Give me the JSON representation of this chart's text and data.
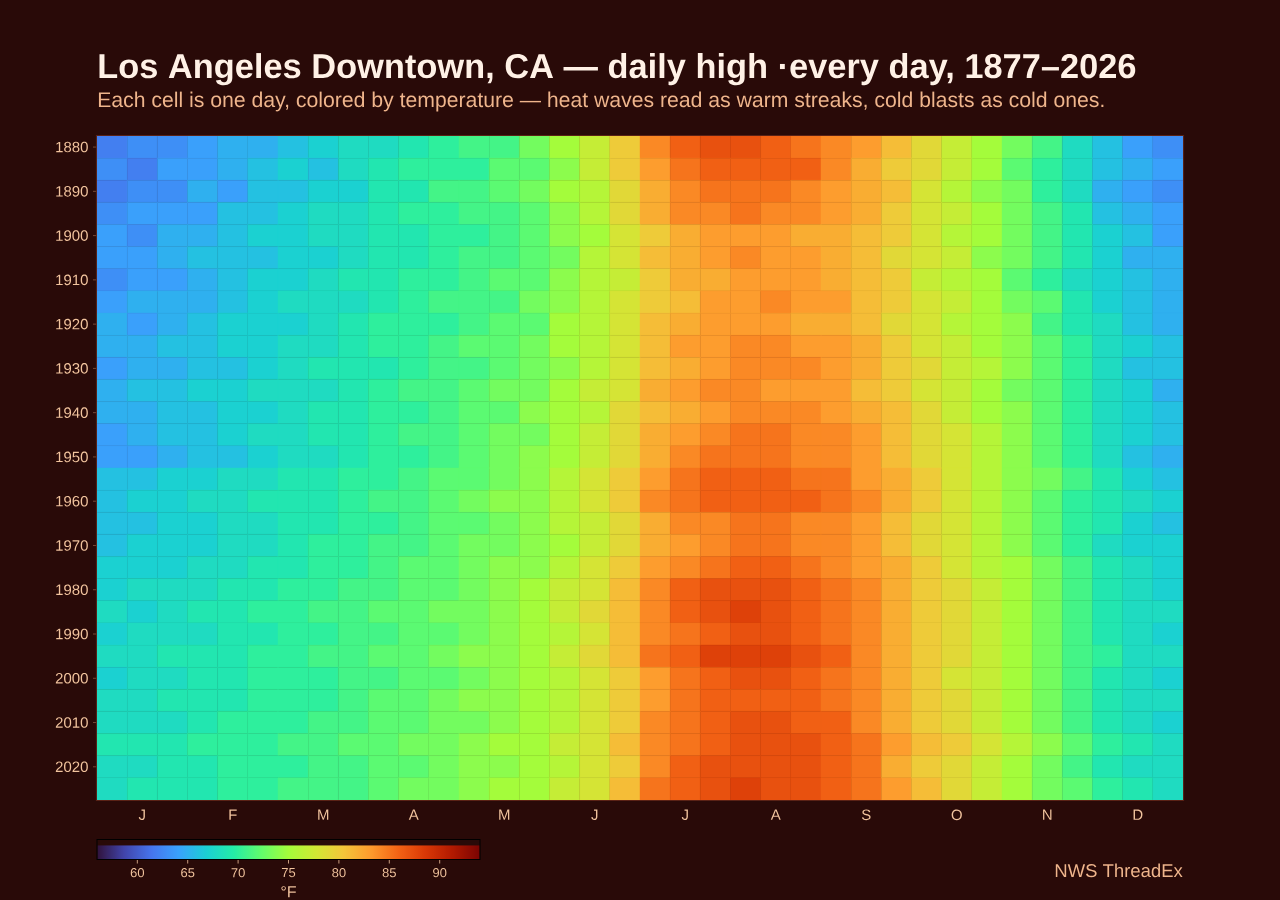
{
  "chart_data": {
    "type": "heatmap",
    "title": "Los Angeles Downtown, CA — daily high ·every day, 1877–2026",
    "subtitle": "Each cell is one day, colored by temperature — heat waves read as warm streaks, cold blasts as cold ones.",
    "annotations": [
      "NWS ThreadEx"
    ],
    "categories": [
      null,
      "J",
      null,
      null,
      "F",
      null,
      null,
      "M",
      null,
      null,
      "A",
      null,
      null,
      "M",
      null,
      null,
      "J",
      null,
      null,
      "J",
      null,
      null,
      "A",
      null,
      null,
      "S",
      null,
      null,
      "O",
      null,
      null,
      "N",
      null,
      null,
      "D",
      null
    ],
    "y_categories": [
      "1880",
      null,
      "1890",
      null,
      "1900",
      null,
      "1910",
      null,
      "1920",
      null,
      "1930",
      null,
      "1940",
      null,
      "1950",
      null,
      "1960",
      null,
      "1970",
      null,
      "1980",
      null,
      "1990",
      null,
      "2000",
      null,
      "2010",
      null,
      "2020",
      null
    ],
    "cells": [
      [
        62,
        63,
        63,
        64,
        65,
        65,
        66,
        67,
        68,
        68,
        69,
        70,
        71,
        71,
        73,
        75,
        77,
        80,
        84,
        86,
        87,
        87,
        86,
        85,
        84,
        83,
        81,
        79,
        77,
        75,
        73,
        71,
        68,
        66,
        64,
        63
      ],
      [
        63,
        62,
        64,
        64,
        65,
        66,
        67,
        66,
        68,
        69,
        70,
        70,
        70,
        72,
        72,
        74,
        77,
        80,
        83,
        85,
        86,
        86,
        86,
        86,
        84,
        82,
        80,
        79,
        77,
        75,
        72,
        70,
        68,
        66,
        65,
        64
      ],
      [
        62,
        63,
        63,
        65,
        64,
        66,
        66,
        67,
        67,
        69,
        69,
        71,
        71,
        72,
        73,
        75,
        76,
        79,
        82,
        84,
        85,
        85,
        85,
        84,
        83,
        82,
        81,
        78,
        76,
        74,
        73,
        70,
        68,
        65,
        64,
        63
      ],
      [
        63,
        64,
        64,
        64,
        66,
        66,
        67,
        68,
        68,
        69,
        70,
        70,
        71,
        71,
        72,
        74,
        76,
        79,
        82,
        84,
        84,
        85,
        84,
        84,
        83,
        82,
        80,
        78,
        77,
        75,
        73,
        71,
        69,
        66,
        65,
        64
      ],
      [
        64,
        63,
        65,
        65,
        66,
        67,
        67,
        68,
        68,
        69,
        69,
        70,
        70,
        71,
        72,
        74,
        75,
        78,
        80,
        82,
        83,
        83,
        83,
        82,
        82,
        81,
        80,
        78,
        76,
        75,
        73,
        71,
        69,
        67,
        66,
        64
      ],
      [
        64,
        64,
        65,
        66,
        66,
        66,
        67,
        67,
        68,
        69,
        69,
        70,
        71,
        71,
        72,
        73,
        76,
        78,
        81,
        82,
        83,
        84,
        83,
        83,
        82,
        81,
        79,
        78,
        77,
        74,
        73,
        71,
        69,
        67,
        65,
        65
      ],
      [
        63,
        64,
        64,
        65,
        66,
        67,
        67,
        68,
        69,
        69,
        70,
        70,
        71,
        72,
        72,
        74,
        76,
        77,
        80,
        82,
        82,
        83,
        83,
        83,
        82,
        81,
        80,
        77,
        76,
        75,
        72,
        70,
        68,
        67,
        66,
        65
      ],
      [
        64,
        65,
        65,
        65,
        66,
        67,
        68,
        68,
        68,
        69,
        70,
        71,
        71,
        71,
        73,
        74,
        76,
        78,
        80,
        81,
        83,
        83,
        84,
        83,
        83,
        81,
        80,
        78,
        77,
        75,
        73,
        72,
        69,
        67,
        66,
        65
      ],
      [
        65,
        64,
        65,
        66,
        67,
        67,
        67,
        68,
        69,
        70,
        70,
        70,
        71,
        72,
        72,
        75,
        76,
        78,
        81,
        82,
        83,
        83,
        83,
        82,
        82,
        81,
        79,
        78,
        76,
        75,
        74,
        71,
        69,
        68,
        66,
        65
      ],
      [
        65,
        65,
        66,
        66,
        67,
        67,
        68,
        68,
        69,
        70,
        70,
        71,
        72,
        72,
        73,
        75,
        76,
        78,
        81,
        83,
        83,
        84,
        84,
        83,
        83,
        82,
        80,
        78,
        77,
        75,
        74,
        72,
        70,
        68,
        67,
        66
      ],
      [
        64,
        65,
        65,
        66,
        66,
        67,
        68,
        69,
        69,
        69,
        70,
        71,
        71,
        72,
        73,
        74,
        76,
        78,
        81,
        82,
        83,
        84,
        84,
        84,
        83,
        82,
        80,
        79,
        77,
        76,
        74,
        72,
        70,
        68,
        66,
        66
      ],
      [
        65,
        66,
        66,
        67,
        67,
        68,
        68,
        68,
        69,
        70,
        71,
        71,
        72,
        73,
        73,
        75,
        77,
        78,
        82,
        83,
        84,
        84,
        83,
        83,
        83,
        81,
        80,
        78,
        77,
        75,
        73,
        72,
        70,
        68,
        67,
        65
      ],
      [
        65,
        65,
        66,
        66,
        67,
        67,
        68,
        69,
        69,
        70,
        70,
        71,
        72,
        72,
        74,
        75,
        76,
        79,
        81,
        82,
        83,
        84,
        84,
        84,
        83,
        82,
        81,
        79,
        77,
        75,
        74,
        72,
        70,
        68,
        67,
        66
      ],
      [
        64,
        65,
        66,
        66,
        67,
        68,
        68,
        69,
        69,
        70,
        71,
        71,
        72,
        73,
        73,
        75,
        77,
        79,
        82,
        83,
        84,
        85,
        85,
        84,
        84,
        83,
        81,
        79,
        78,
        76,
        74,
        72,
        70,
        68,
        67,
        66
      ],
      [
        64,
        64,
        65,
        66,
        66,
        67,
        68,
        68,
        69,
        70,
        70,
        71,
        72,
        73,
        74,
        75,
        77,
        79,
        82,
        84,
        85,
        85,
        85,
        84,
        84,
        83,
        81,
        79,
        78,
        76,
        74,
        72,
        70,
        68,
        66,
        65
      ],
      [
        66,
        66,
        67,
        67,
        68,
        68,
        69,
        69,
        70,
        70,
        71,
        72,
        72,
        73,
        74,
        76,
        78,
        80,
        83,
        85,
        86,
        86,
        86,
        85,
        85,
        83,
        82,
        80,
        78,
        76,
        74,
        73,
        71,
        69,
        67,
        66
      ],
      [
        66,
        67,
        67,
        68,
        68,
        69,
        69,
        69,
        70,
        71,
        71,
        72,
        73,
        74,
        74,
        76,
        78,
        80,
        84,
        85,
        86,
        86,
        86,
        86,
        85,
        84,
        82,
        80,
        78,
        76,
        74,
        72,
        70,
        69,
        68,
        67
      ],
      [
        66,
        66,
        67,
        67,
        68,
        68,
        69,
        69,
        70,
        70,
        71,
        72,
        72,
        73,
        74,
        76,
        77,
        79,
        82,
        84,
        84,
        85,
        85,
        84,
        84,
        83,
        81,
        79,
        78,
        76,
        74,
        72,
        70,
        69,
        67,
        66
      ],
      [
        66,
        67,
        67,
        67,
        68,
        68,
        69,
        70,
        70,
        71,
        71,
        72,
        73,
        73,
        74,
        75,
        77,
        79,
        82,
        83,
        84,
        85,
        85,
        84,
        84,
        83,
        81,
        79,
        78,
        76,
        74,
        72,
        70,
        68,
        67,
        67
      ],
      [
        67,
        67,
        67,
        68,
        68,
        69,
        69,
        70,
        70,
        71,
        72,
        72,
        73,
        74,
        74,
        76,
        78,
        80,
        83,
        84,
        85,
        86,
        86,
        85,
        84,
        83,
        82,
        80,
        78,
        76,
        75,
        73,
        71,
        69,
        68,
        67
      ],
      [
        67,
        68,
        68,
        68,
        69,
        69,
        70,
        70,
        71,
        71,
        72,
        72,
        73,
        74,
        75,
        77,
        78,
        81,
        84,
        86,
        87,
        87,
        87,
        86,
        85,
        84,
        82,
        80,
        79,
        77,
        75,
        73,
        71,
        69,
        68,
        67
      ],
      [
        68,
        67,
        68,
        69,
        69,
        70,
        70,
        71,
        71,
        72,
        72,
        73,
        73,
        74,
        75,
        77,
        79,
        81,
        84,
        86,
        87,
        88,
        87,
        86,
        85,
        84,
        82,
        80,
        79,
        77,
        75,
        73,
        71,
        69,
        68,
        68
      ],
      [
        67,
        68,
        68,
        68,
        69,
        69,
        70,
        70,
        71,
        71,
        72,
        72,
        73,
        74,
        75,
        76,
        78,
        81,
        84,
        85,
        86,
        87,
        87,
        86,
        85,
        84,
        82,
        80,
        79,
        77,
        75,
        73,
        71,
        69,
        68,
        67
      ],
      [
        68,
        68,
        69,
        69,
        69,
        70,
        70,
        71,
        71,
        72,
        72,
        73,
        74,
        74,
        75,
        77,
        79,
        81,
        85,
        86,
        88,
        88,
        88,
        87,
        86,
        84,
        82,
        80,
        79,
        77,
        75,
        73,
        71,
        70,
        68,
        68
      ],
      [
        67,
        68,
        68,
        69,
        69,
        70,
        70,
        70,
        71,
        71,
        72,
        72,
        73,
        74,
        75,
        76,
        78,
        80,
        83,
        85,
        86,
        87,
        87,
        86,
        85,
        84,
        82,
        80,
        78,
        77,
        75,
        73,
        71,
        69,
        68,
        67
      ],
      [
        68,
        68,
        69,
        69,
        69,
        70,
        70,
        70,
        71,
        72,
        72,
        73,
        74,
        74,
        75,
        76,
        78,
        80,
        83,
        85,
        86,
        86,
        86,
        86,
        85,
        84,
        82,
        80,
        79,
        77,
        75,
        73,
        71,
        69,
        68,
        68
      ],
      [
        68,
        68,
        68,
        69,
        70,
        70,
        70,
        71,
        71,
        72,
        72,
        73,
        73,
        74,
        75,
        76,
        78,
        80,
        84,
        85,
        86,
        87,
        87,
        86,
        86,
        84,
        82,
        80,
        79,
        77,
        75,
        73,
        71,
        69,
        68,
        67
      ],
      [
        69,
        69,
        69,
        70,
        70,
        70,
        71,
        71,
        72,
        72,
        73,
        73,
        74,
        75,
        75,
        77,
        78,
        81,
        84,
        85,
        86,
        87,
        87,
        87,
        86,
        85,
        83,
        81,
        80,
        78,
        76,
        74,
        72,
        70,
        69,
        68
      ],
      [
        68,
        68,
        69,
        69,
        70,
        70,
        70,
        71,
        71,
        72,
        72,
        73,
        74,
        74,
        75,
        76,
        78,
        80,
        84,
        86,
        87,
        87,
        87,
        87,
        86,
        85,
        82,
        80,
        79,
        77,
        75,
        73,
        71,
        69,
        68,
        68
      ],
      [
        68,
        69,
        69,
        69,
        70,
        70,
        71,
        71,
        71,
        72,
        73,
        73,
        74,
        75,
        75,
        77,
        78,
        81,
        85,
        86,
        87,
        88,
        87,
        87,
        86,
        85,
        83,
        81,
        79,
        77,
        75,
        73,
        72,
        70,
        69,
        68
      ]
    ],
    "clim": [
      56,
      94
    ],
    "cticks": [
      60,
      65,
      70,
      75,
      80,
      85,
      90
    ],
    "clabel": "°F"
  }
}
